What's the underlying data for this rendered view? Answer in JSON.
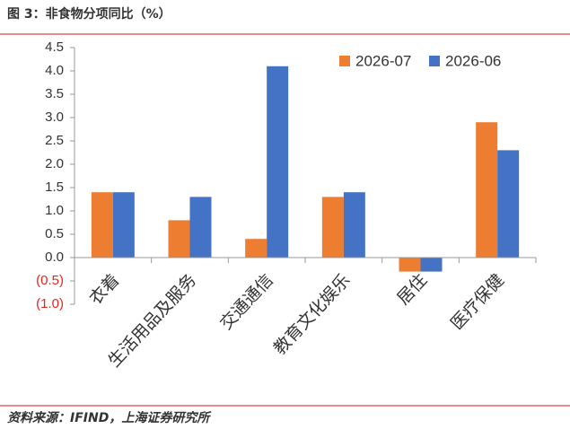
{
  "chart_data": {
    "type": "bar",
    "title": "图 3：非食物分项同比（%）",
    "source": "资料来源：IFIND，上海证券研究所",
    "categories": [
      "衣着",
      "生活用品及服务",
      "交通通信",
      "教育文化娱乐",
      "居住",
      "医疗保健"
    ],
    "series": [
      {
        "name": "2026-07",
        "color": "#ed7d31",
        "values": [
          1.4,
          0.8,
          0.4,
          1.3,
          -0.3,
          2.9
        ]
      },
      {
        "name": "2026-06",
        "color": "#4472c4",
        "values": [
          1.4,
          1.3,
          4.1,
          1.4,
          -0.3,
          2.3
        ]
      }
    ],
    "ylim": [
      -1.0,
      4.5
    ],
    "yticks": [
      {
        "value": -1.0,
        "label": "(1.0)"
      },
      {
        "value": -0.5,
        "label": "(0.5)"
      },
      {
        "value": 0,
        "label": "0.0"
      },
      0.5,
      {
        "value": 1,
        "label": "1.0"
      },
      1.5,
      {
        "value": 2,
        "label": "2.0"
      },
      2.5,
      {
        "value": 3,
        "label": "3.0"
      },
      3.5,
      {
        "value": 4,
        "label": "4.0"
      },
      4.5
    ],
    "negative_tick_color": "#e8231e",
    "legend": "top-right",
    "grid": false
  }
}
